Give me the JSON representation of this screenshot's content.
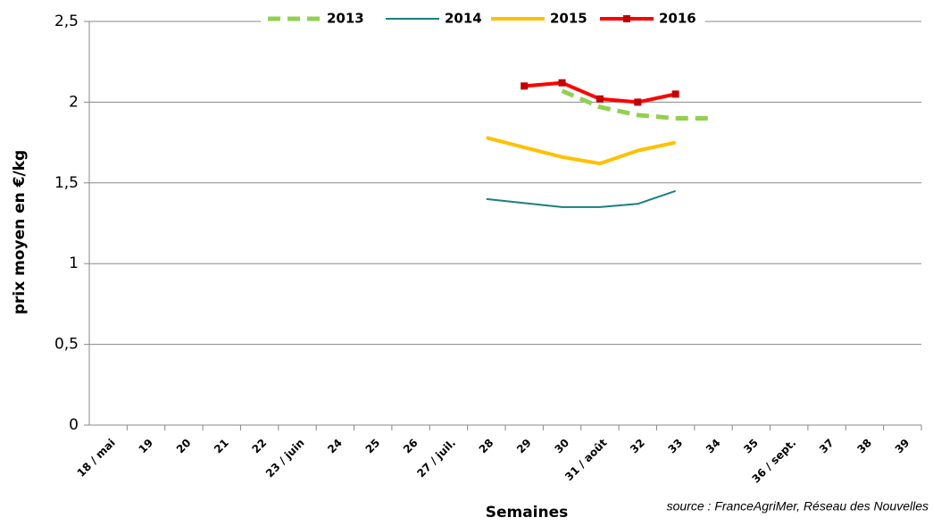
{
  "chart_data": {
    "type": "line",
    "y_label": "prix moyen en €/kg",
    "x_label": "Semaines",
    "source": "source : FranceAgriMer, Réseau des Nouvelles",
    "categories": [
      "18 / mai",
      "19",
      "20",
      "21",
      "22",
      "23 / juin",
      "24",
      "25",
      "26",
      "27 / juil.",
      "28",
      "29",
      "30",
      "31 / août",
      "32",
      "33",
      "34",
      "35",
      "36 / sept.",
      "37",
      "38",
      "39"
    ],
    "series": [
      {
        "name": "2013",
        "color": "#92d050",
        "dashed": true,
        "values": [
          null,
          null,
          null,
          null,
          null,
          null,
          null,
          null,
          null,
          null,
          null,
          null,
          2.07,
          1.97,
          1.92,
          1.9,
          1.9,
          null,
          null,
          null,
          null,
          null
        ]
      },
      {
        "name": "2014",
        "color": "#1a7f7f",
        "values": [
          null,
          null,
          null,
          null,
          null,
          null,
          null,
          null,
          null,
          null,
          1.4,
          1.375,
          1.35,
          1.35,
          1.37,
          1.45,
          null,
          null,
          null,
          null,
          null,
          null
        ]
      },
      {
        "name": "2015",
        "color": "#ffc000",
        "values": [
          null,
          null,
          null,
          null,
          null,
          null,
          null,
          null,
          null,
          null,
          1.78,
          1.72,
          1.66,
          1.62,
          1.7,
          1.75,
          null,
          null,
          null,
          null,
          null,
          null
        ]
      },
      {
        "name": "2016",
        "color": "#ff0000",
        "markers": true,
        "values": [
          null,
          null,
          null,
          null,
          null,
          null,
          null,
          null,
          null,
          null,
          null,
          2.1,
          2.12,
          2.02,
          2.0,
          2.05,
          null,
          null,
          null,
          null,
          null,
          null
        ]
      }
    ],
    "ylim": [
      0,
      2.5
    ],
    "yticks": [
      0,
      {
        "value": 0.5,
        "label": "0,5"
      },
      1,
      {
        "value": 1.5,
        "label": "1,5"
      },
      2,
      {
        "value": 2.5,
        "label": "2,5"
      }
    ],
    "grid": true,
    "legend": "top"
  }
}
